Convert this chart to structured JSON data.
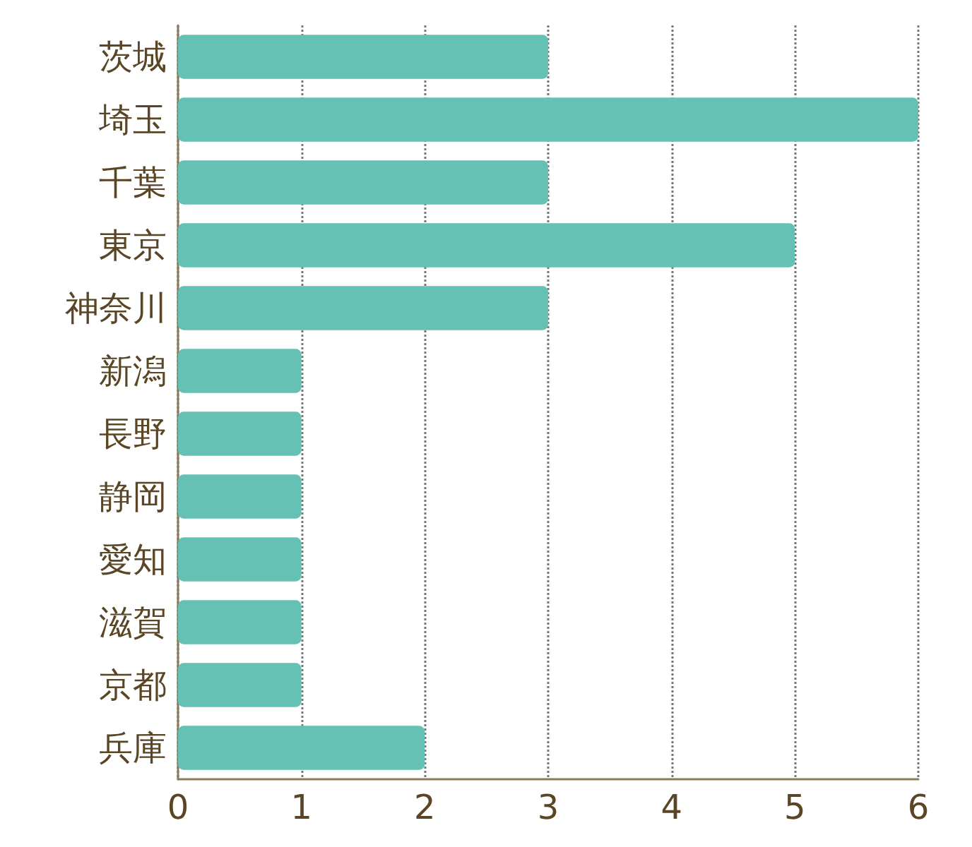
{
  "chart_data": {
    "type": "bar",
    "orientation": "horizontal",
    "categories": [
      "茨城",
      "埼玉",
      "千葉",
      "東京",
      "神奈川",
      "新潟",
      "長野",
      "静岡",
      "愛知",
      "滋賀",
      "京都",
      "兵庫"
    ],
    "values": [
      3,
      6,
      3,
      5,
      3,
      1,
      1,
      1,
      1,
      1,
      1,
      2
    ],
    "color": "#64c1b4",
    "xlim": [
      0,
      6
    ],
    "xticks": [
      0,
      1,
      2,
      3,
      4,
      5,
      6
    ],
    "grid": "x"
  }
}
